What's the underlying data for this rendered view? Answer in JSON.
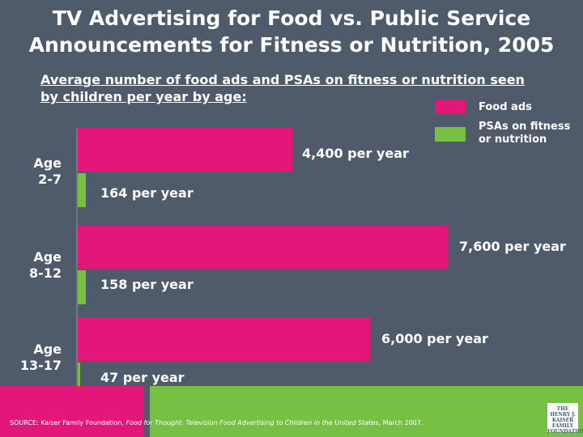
{
  "title_line1": "TV Advertising for Food vs. Public Service",
  "title_line2": "Announcements for Fitness or Nutrition, 2005",
  "subtitle_line1": "Average number of food ads and PSAs on fitness or nutrition seen",
  "subtitle_line2": "by children per year by age:",
  "legend": {
    "food_label": "Food ads",
    "psa_label_line1": "PSAs on fitness",
    "psa_label_line2": "or nutrition"
  },
  "colors": {
    "food": "#e3177a",
    "psa": "#76c043",
    "background": "#4f5a6b"
  },
  "chart_data": {
    "type": "bar",
    "orientation": "horizontal",
    "categories": [
      "Age 2-7",
      "Age 8-12",
      "Age 13-17"
    ],
    "series": [
      {
        "name": "Food ads",
        "values": [
          4400,
          7600,
          6000
        ]
      },
      {
        "name": "PSAs on fitness or nutrition",
        "values": [
          164,
          158,
          47
        ]
      }
    ],
    "data_labels": [
      [
        "4,400 per year",
        "7,600 per year",
        "6,000 per year"
      ],
      [
        "164 per year",
        "158 per year",
        "47 per year"
      ]
    ],
    "title": "TV Advertising for Food vs. Public Service Announcements for Fitness or Nutrition, 2005",
    "legend_position": "top-right"
  },
  "categories_display": [
    {
      "line1": "Age",
      "line2": "2-7"
    },
    {
      "line1": "Age",
      "line2": "8-12"
    },
    {
      "line1": "Age",
      "line2": "13-17"
    }
  ],
  "footer": {
    "source_prefix": "SOURCE: Kaiser Family Foundation, ",
    "source_italic": "Food for Thought: Television Food Advertising to Children in the United States",
    "source_suffix": ", March 2007.",
    "logo_line1": "THE HENRY J.",
    "logo_line2": "KAISER",
    "logo_line3": "FAMILY",
    "logo_line4": "FOUNDATION"
  }
}
